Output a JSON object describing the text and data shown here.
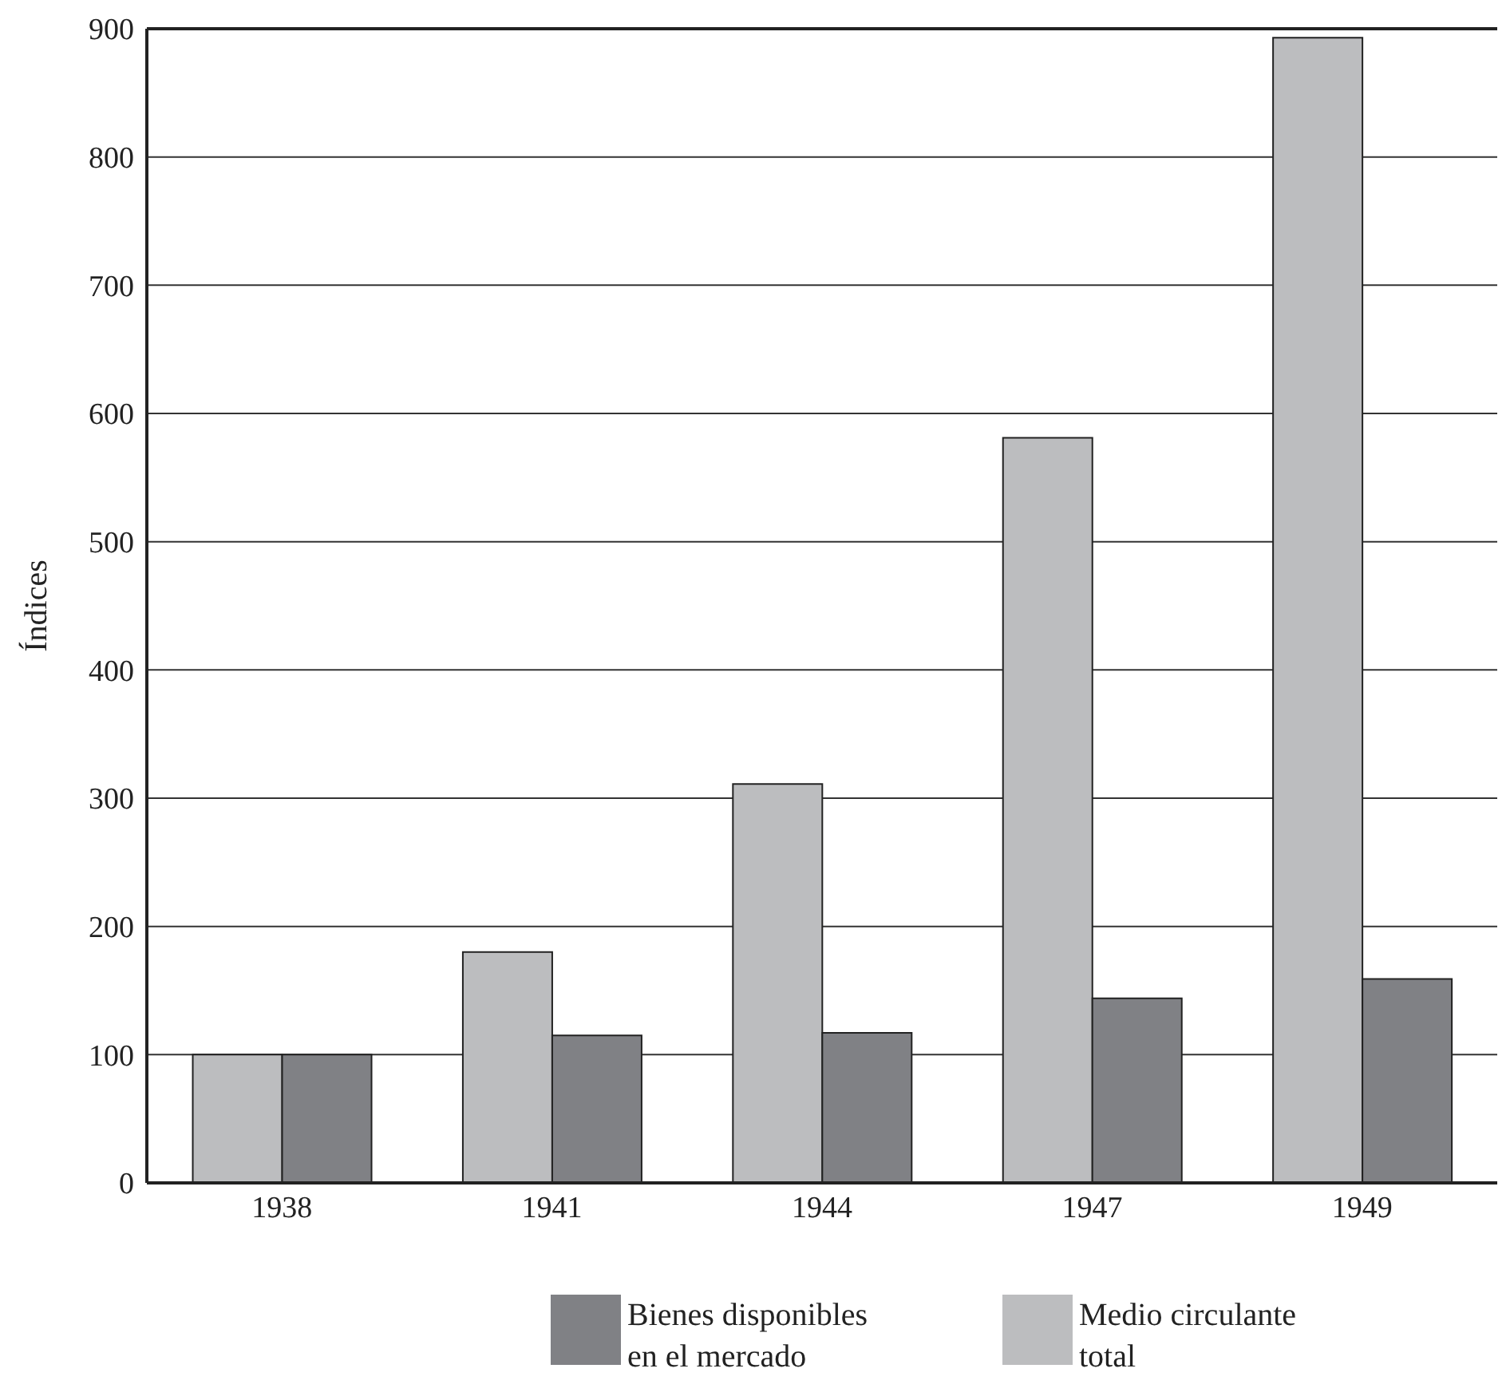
{
  "chart_data": {
    "type": "bar",
    "ylabel": "Índices",
    "categories": [
      "1938",
      "1941",
      "1944",
      "1947",
      "1949"
    ],
    "series": [
      {
        "name": "Medio circulante total",
        "color": "#bcbdbf",
        "values": [
          100,
          180,
          311,
          581,
          893
        ]
      },
      {
        "name": "Bienes disponibles en el mercado",
        "color": "#808185",
        "values": [
          100,
          115,
          117,
          144,
          159
        ]
      }
    ],
    "ylim": [
      0,
      900
    ],
    "yticks": [
      0,
      100,
      200,
      300,
      400,
      500,
      600,
      700,
      800,
      900
    ],
    "grid": "y",
    "legend": "bottom"
  }
}
